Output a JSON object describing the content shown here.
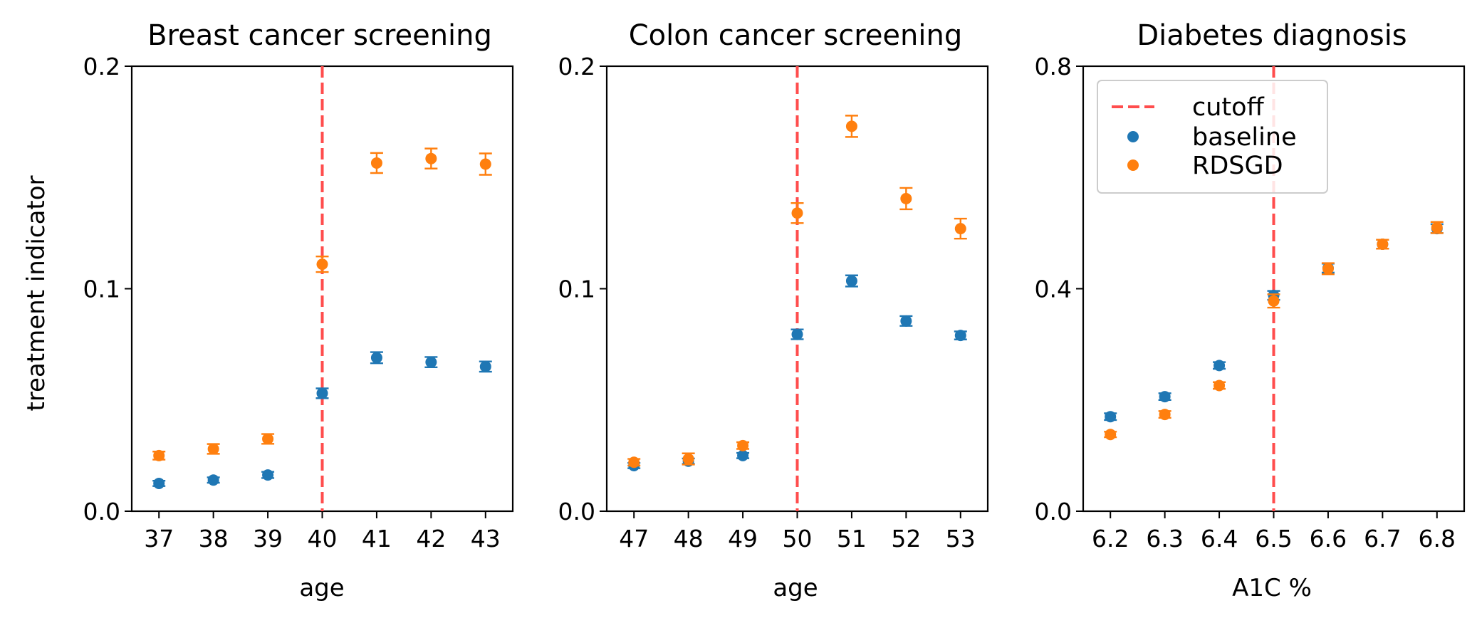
{
  "chart_data": [
    {
      "type": "scatter",
      "title": "Breast cancer screening",
      "xlabel": "age",
      "ylabel": "treatment indicator",
      "x": [
        37,
        38,
        39,
        40,
        41,
        42,
        43
      ],
      "x_tick_labels": [
        "37",
        "38",
        "39",
        "40",
        "41",
        "42",
        "43"
      ],
      "xlim": [
        36.5,
        43.5
      ],
      "ylim": [
        0,
        0.2
      ],
      "y_tick_labels": [
        "0.0",
        "0.1",
        "0.2"
      ],
      "cutoff": 40,
      "series": [
        {
          "name": "baseline",
          "color": "#1f77b4",
          "values": [
            0.0125,
            0.014,
            0.0163,
            0.053,
            0.069,
            0.067,
            0.065
          ],
          "errors": [
            0.0012,
            0.0012,
            0.0014,
            0.0022,
            0.0025,
            0.0023,
            0.0023
          ]
        },
        {
          "name": "RDSGD",
          "color": "#ff7f0e",
          "values": [
            0.025,
            0.028,
            0.0325,
            0.111,
            0.1565,
            0.1585,
            0.156
          ],
          "errors": [
            0.0018,
            0.0022,
            0.0022,
            0.0035,
            0.0045,
            0.0045,
            0.0048
          ]
        }
      ]
    },
    {
      "type": "scatter",
      "title": "Colon cancer screening",
      "xlabel": "age",
      "ylabel": "",
      "x": [
        47,
        48,
        49,
        50,
        51,
        52,
        53
      ],
      "x_tick_labels": [
        "47",
        "48",
        "49",
        "50",
        "51",
        "52",
        "53"
      ],
      "xlim": [
        46.5,
        53.5
      ],
      "ylim": [
        0,
        0.2
      ],
      "y_tick_labels": [
        "0.0",
        "0.1",
        "0.2"
      ],
      "cutoff": 50,
      "series": [
        {
          "name": "baseline",
          "color": "#1f77b4",
          "values": [
            0.0205,
            0.0225,
            0.025,
            0.0795,
            0.1035,
            0.0855,
            0.079
          ],
          "errors": [
            0.0012,
            0.0012,
            0.0012,
            0.0022,
            0.0025,
            0.0022,
            0.0018
          ]
        },
        {
          "name": "RDSGD",
          "color": "#ff7f0e",
          "values": [
            0.022,
            0.0235,
            0.0295,
            0.134,
            0.173,
            0.1405,
            0.127
          ],
          "errors": [
            0.0015,
            0.0025,
            0.0015,
            0.0045,
            0.0048,
            0.0048,
            0.0045
          ]
        }
      ]
    },
    {
      "type": "scatter",
      "title": "Diabetes diagnosis",
      "xlabel": "A1C %",
      "ylabel": "",
      "x": [
        6.2,
        6.3,
        6.4,
        6.5,
        6.6,
        6.7,
        6.8
      ],
      "x_tick_labels": [
        "6.2",
        "6.3",
        "6.4",
        "6.5",
        "6.6",
        "6.7",
        "6.8"
      ],
      "xlim": [
        6.15,
        6.85
      ],
      "ylim": [
        0,
        0.8
      ],
      "y_tick_labels": [
        "0.0",
        "0.4",
        "0.8"
      ],
      "cutoff": 6.5,
      "legend": {
        "placement": "top-left",
        "entries": [
          "cutoff",
          "baseline",
          "RDSGD"
        ]
      },
      "series": [
        {
          "name": "baseline",
          "color": "#1f77b4",
          "values": [
            0.17,
            0.206,
            0.262,
            0.388,
            0.437,
            0.48,
            0.508
          ],
          "errors": [
            0.006,
            0.006,
            0.006,
            0.008,
            0.008,
            0.008,
            0.008
          ]
        },
        {
          "name": "RDSGD",
          "color": "#ff7f0e",
          "values": [
            0.138,
            0.174,
            0.226,
            0.378,
            0.436,
            0.48,
            0.51
          ],
          "errors": [
            0.005,
            0.006,
            0.006,
            0.012,
            0.01,
            0.008,
            0.01
          ]
        }
      ]
    }
  ],
  "style": {
    "cutoff_color": "#ff4d4d"
  }
}
